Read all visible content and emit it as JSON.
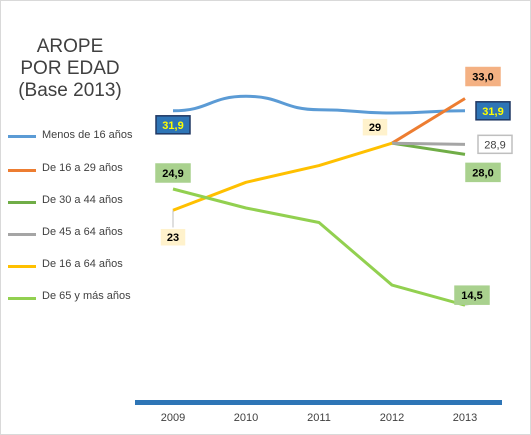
{
  "title": {
    "line1": "AROPE",
    "line2": "POR EDAD",
    "line3": "(Base 2013)"
  },
  "chart_data": {
    "type": "line",
    "categories": [
      "2009",
      "2010",
      "2011",
      "2012",
      "2013"
    ],
    "xlabel": "",
    "ylabel": "",
    "grid": false,
    "legend_position": "left",
    "series": [
      {
        "name": "Menos de 16 años",
        "color": "#5b9bd5",
        "values": [
          31.9,
          33.2,
          32.0,
          31.7,
          31.9
        ],
        "labels": [
          {
            "index": 0,
            "text": "31,9",
            "style": "blue-box"
          },
          {
            "index": 4,
            "text": "31,9",
            "style": "blue-box"
          }
        ]
      },
      {
        "name": "De 16 a 29 años",
        "color": "#ed7d31",
        "values": [
          null,
          null,
          null,
          29.0,
          33.0
        ],
        "labels": [
          {
            "index": 4,
            "text": "33,0",
            "style": "orange-box"
          }
        ]
      },
      {
        "name": "De 30 a 44 años",
        "color": "#70ad47",
        "values": [
          null,
          null,
          null,
          29.0,
          28.0
        ],
        "labels": [
          {
            "index": 4,
            "text": "28,0",
            "style": "green-box"
          }
        ]
      },
      {
        "name": "De 45 a 64 años",
        "color": "#a5a5a5",
        "values": [
          null,
          null,
          null,
          29.0,
          28.9
        ],
        "labels": [
          {
            "index": 4,
            "text": "28,9",
            "style": "gray-box"
          }
        ]
      },
      {
        "name": "De 16 a 64 años",
        "color": "#ffc000",
        "values": [
          23.0,
          25.5,
          27.0,
          29.0,
          null
        ],
        "labels": [
          {
            "index": 0,
            "text": "23",
            "style": "yellow-box"
          },
          {
            "index": 3,
            "text": "29",
            "style": "yellow-box"
          }
        ]
      },
      {
        "name": "De 65 y más años",
        "color": "#92d050",
        "values": [
          24.9,
          23.2,
          21.9,
          16.3,
          14.5
        ],
        "labels": [
          {
            "index": 0,
            "text": "24,9",
            "style": "lightgreen-box"
          },
          {
            "index": 4,
            "text": "14,5",
            "style": "lightgreen-box"
          }
        ]
      }
    ],
    "axis_color": "#2e75b6"
  }
}
